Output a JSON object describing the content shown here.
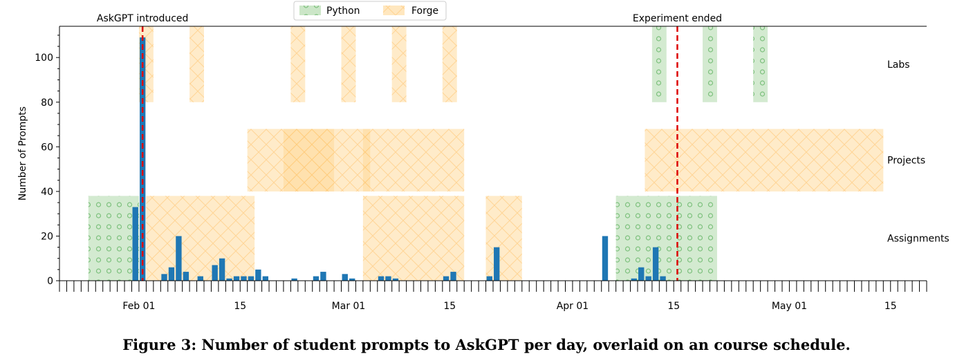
{
  "chart_data": {
    "type": "bar",
    "ylabel": "Number of Prompts",
    "xlabel": "",
    "ylim": [
      0,
      114
    ],
    "xlim": [
      "2024-01-21",
      "2024-05-20"
    ],
    "yticks": [
      0,
      20,
      40,
      60,
      80,
      100
    ],
    "xticks": [
      {
        "date": "2024-02-01",
        "label": "Feb 01"
      },
      {
        "date": "2024-02-15",
        "label": "15"
      },
      {
        "date": "2024-03-01",
        "label": "Mar 01"
      },
      {
        "date": "2024-03-15",
        "label": "15"
      },
      {
        "date": "2024-04-01",
        "label": "Apr 01"
      },
      {
        "date": "2024-04-15",
        "label": "15"
      },
      {
        "date": "2024-05-01",
        "label": "May 01"
      },
      {
        "date": "2024-05-15",
        "label": "15"
      }
    ],
    "series": [
      {
        "values": [
          {
            "date": "2024-01-31",
            "value": 33
          },
          {
            "date": "2024-02-01",
            "value": 109
          },
          {
            "date": "2024-02-04",
            "value": 3
          },
          {
            "date": "2024-02-05",
            "value": 6
          },
          {
            "date": "2024-02-06",
            "value": 20
          },
          {
            "date": "2024-02-07",
            "value": 4
          },
          {
            "date": "2024-02-09",
            "value": 2
          },
          {
            "date": "2024-02-11",
            "value": 7
          },
          {
            "date": "2024-02-12",
            "value": 10
          },
          {
            "date": "2024-02-13",
            "value": 1
          },
          {
            "date": "2024-02-14",
            "value": 2
          },
          {
            "date": "2024-02-15",
            "value": 2
          },
          {
            "date": "2024-02-16",
            "value": 2
          },
          {
            "date": "2024-02-17",
            "value": 5
          },
          {
            "date": "2024-02-18",
            "value": 2
          },
          {
            "date": "2024-02-22",
            "value": 1
          },
          {
            "date": "2024-02-25",
            "value": 2
          },
          {
            "date": "2024-02-26",
            "value": 4
          },
          {
            "date": "2024-02-29",
            "value": 3
          },
          {
            "date": "2024-03-01",
            "value": 1
          },
          {
            "date": "2024-03-05",
            "value": 2
          },
          {
            "date": "2024-03-06",
            "value": 2
          },
          {
            "date": "2024-03-07",
            "value": 1
          },
          {
            "date": "2024-03-14",
            "value": 2
          },
          {
            "date": "2024-03-15",
            "value": 4
          },
          {
            "date": "2024-03-20",
            "value": 2
          },
          {
            "date": "2024-03-21",
            "value": 15
          },
          {
            "date": "2024-04-05",
            "value": 20
          },
          {
            "date": "2024-04-09",
            "value": 1
          },
          {
            "date": "2024-04-10",
            "value": 6
          },
          {
            "date": "2024-04-11",
            "value": 2
          },
          {
            "date": "2024-04-12",
            "value": 15
          },
          {
            "date": "2024-04-13",
            "value": 2
          }
        ]
      }
    ],
    "legend": {
      "position": "top-center",
      "entries": [
        {
          "label": "Python",
          "color": "#a8d5a2",
          "pattern": "circles"
        },
        {
          "label": "Forge",
          "color": "#ffd794",
          "pattern": "crosshatch"
        }
      ]
    },
    "row_labels": [
      {
        "label": "Labs",
        "range": [
          80,
          114
        ]
      },
      {
        "label": "Projects",
        "range": [
          40,
          68
        ]
      },
      {
        "label": "Assignments",
        "range": [
          0,
          38
        ]
      }
    ],
    "schedule": [
      {
        "row": "Assignments",
        "course": "Python",
        "start": "2024-01-25",
        "end": "2024-01-31"
      },
      {
        "row": "Assignments",
        "course": "Forge",
        "start": "2024-02-02",
        "end": "2024-02-08"
      },
      {
        "row": "Assignments",
        "course": "Forge",
        "start": "2024-02-09",
        "end": "2024-02-16"
      },
      {
        "row": "Assignments",
        "course": "Forge",
        "start": "2024-03-03",
        "end": "2024-03-09"
      },
      {
        "row": "Assignments",
        "course": "Forge",
        "start": "2024-03-10",
        "end": "2024-03-16"
      },
      {
        "row": "Assignments",
        "course": "Forge",
        "start": "2024-03-20",
        "end": "2024-03-24"
      },
      {
        "row": "Assignments",
        "course": "Python",
        "start": "2024-04-07",
        "end": "2024-04-13"
      },
      {
        "row": "Assignments",
        "course": "Python",
        "start": "2024-04-14",
        "end": "2024-04-20"
      },
      {
        "row": "Projects",
        "course": "Forge",
        "start": "2024-02-16",
        "end": "2024-02-27"
      },
      {
        "row": "Projects",
        "course": "Forge",
        "start": "2024-02-21",
        "end": "2024-03-03"
      },
      {
        "row": "Projects",
        "course": "Forge",
        "start": "2024-03-03",
        "end": "2024-03-09"
      },
      {
        "row": "Projects",
        "course": "Forge",
        "start": "2024-03-10",
        "end": "2024-03-16"
      },
      {
        "row": "Projects",
        "course": "Forge",
        "start": "2024-04-11",
        "end": "2024-05-13"
      },
      {
        "row": "Labs",
        "course": "Forge",
        "start": "2024-02-01",
        "end": "2024-02-02"
      },
      {
        "row": "Labs",
        "course": "Forge",
        "start": "2024-02-08",
        "end": "2024-02-09"
      },
      {
        "row": "Labs",
        "course": "Forge",
        "start": "2024-02-22",
        "end": "2024-02-23"
      },
      {
        "row": "Labs",
        "course": "Forge",
        "start": "2024-02-29",
        "end": "2024-03-01"
      },
      {
        "row": "Labs",
        "course": "Forge",
        "start": "2024-03-07",
        "end": "2024-03-08"
      },
      {
        "row": "Labs",
        "course": "Forge",
        "start": "2024-03-14",
        "end": "2024-03-15"
      },
      {
        "row": "Labs",
        "course": "Python",
        "start": "2024-04-12",
        "end": "2024-04-13"
      },
      {
        "row": "Labs",
        "course": "Python",
        "start": "2024-04-19",
        "end": "2024-04-20"
      },
      {
        "row": "Labs",
        "course": "Python",
        "start": "2024-04-26",
        "end": "2024-04-27"
      }
    ],
    "annotations": [
      {
        "date": "2024-02-01",
        "label": "AskGPT introduced",
        "color": "#dd0000"
      },
      {
        "date": "2024-04-15",
        "label": "Experiment ended",
        "color": "#dd0000"
      }
    ],
    "bar_color": "#1f77b4"
  },
  "caption": "Figure 3: Number of student prompts to AskGPT per day, overlaid on an course schedule."
}
